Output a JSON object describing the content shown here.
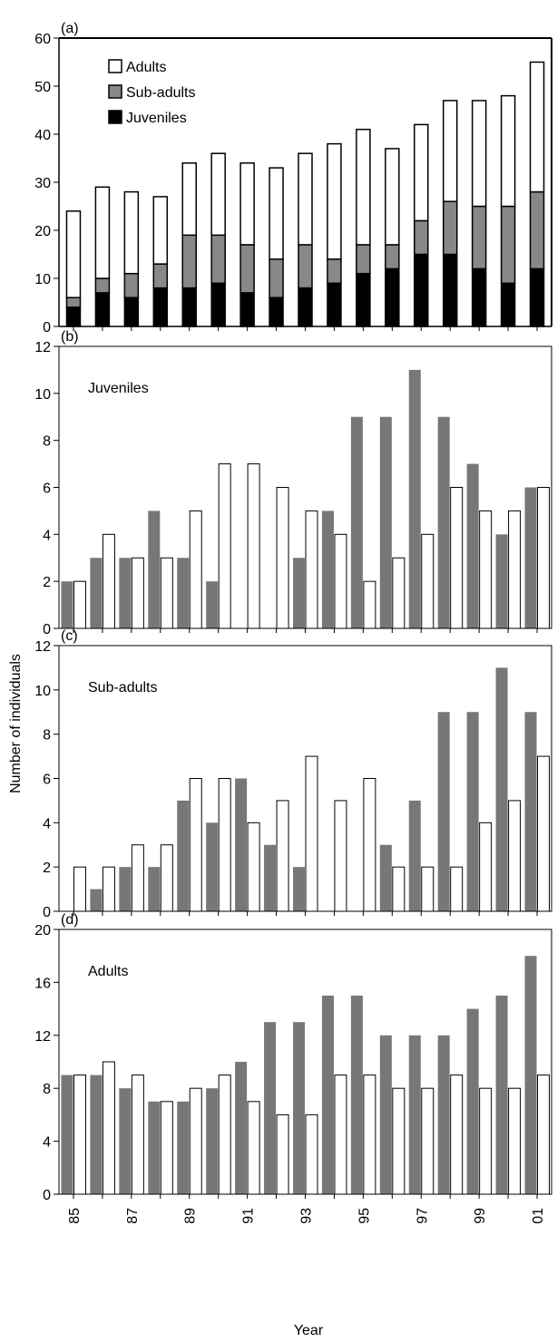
{
  "chart_data": [
    {
      "type": "bar",
      "panel_label": "(a)",
      "stacked": true,
      "categories": [
        "85",
        "86",
        "87",
        "88",
        "89",
        "90",
        "91",
        "92",
        "93",
        "94",
        "95",
        "96",
        "97",
        "98",
        "99",
        "00",
        "01"
      ],
      "series": [
        {
          "name": "Juveniles",
          "color": "#000000",
          "values": [
            4,
            7,
            6,
            8,
            8,
            9,
            7,
            6,
            8,
            9,
            11,
            12,
            15,
            15,
            12,
            9,
            12
          ]
        },
        {
          "name": "Sub-adults",
          "color": "#888888",
          "values": [
            2,
            3,
            5,
            5,
            11,
            10,
            10,
            8,
            9,
            5,
            6,
            5,
            7,
            11,
            13,
            16,
            16
          ]
        },
        {
          "name": "Adults",
          "color": "#ffffff",
          "values": [
            18,
            19,
            17,
            14,
            15,
            17,
            17,
            19,
            19,
            24,
            24,
            20,
            20,
            21,
            22,
            23,
            27
          ]
        }
      ],
      "ylim": [
        0,
        60
      ],
      "yticks": [
        "0",
        "10",
        "20",
        "30",
        "40",
        "50",
        "60"
      ],
      "legend": [
        "Adults",
        "Sub-adults",
        "Juveniles"
      ],
      "legend_position": "top-left"
    },
    {
      "type": "bar",
      "panel_label": "(b)",
      "inset_label": "Juveniles",
      "categories": [
        "85",
        "86",
        "87",
        "88",
        "89",
        "90",
        "91",
        "92",
        "93",
        "94",
        "95",
        "96",
        "97",
        "98",
        "99",
        "00",
        "01"
      ],
      "series": [
        {
          "color": "#777777",
          "values": [
            2,
            3,
            3,
            5,
            3,
            2,
            0,
            0,
            3,
            5,
            9,
            9,
            11,
            9,
            7,
            4,
            6
          ]
        },
        {
          "color": "#ffffff",
          "values": [
            2,
            4,
            3,
            3,
            5,
            7,
            7,
            6,
            5,
            4,
            2,
            3,
            4,
            6,
            5,
            5,
            6
          ]
        }
      ],
      "ylim": [
        0,
        12
      ],
      "yticks": [
        "0",
        "2",
        "4",
        "6",
        "8",
        "10",
        "12"
      ]
    },
    {
      "type": "bar",
      "panel_label": "(c)",
      "inset_label": "Sub-adults",
      "categories": [
        "85",
        "86",
        "87",
        "88",
        "89",
        "90",
        "91",
        "92",
        "93",
        "94",
        "95",
        "96",
        "97",
        "98",
        "99",
        "00",
        "01"
      ],
      "series": [
        {
          "color": "#777777",
          "values": [
            0,
            1,
            2,
            2,
            5,
            4,
            6,
            3,
            2,
            0,
            0,
            3,
            5,
            9,
            9,
            11,
            9
          ]
        },
        {
          "color": "#ffffff",
          "values": [
            2,
            2,
            3,
            3,
            6,
            6,
            4,
            5,
            7,
            5,
            6,
            2,
            2,
            2,
            4,
            5,
            7
          ]
        }
      ],
      "ylim": [
        0,
        12
      ],
      "yticks": [
        "0",
        "2",
        "4",
        "6",
        "8",
        "10",
        "12"
      ]
    },
    {
      "type": "bar",
      "panel_label": "(d)",
      "inset_label": "Adults",
      "categories": [
        "85",
        "86",
        "87",
        "88",
        "89",
        "90",
        "91",
        "92",
        "93",
        "94",
        "95",
        "96",
        "97",
        "98",
        "99",
        "00",
        "01"
      ],
      "series": [
        {
          "color": "#777777",
          "values": [
            9,
            9,
            8,
            7,
            7,
            8,
            10,
            13,
            13,
            15,
            15,
            12,
            12,
            12,
            14,
            15,
            18
          ]
        },
        {
          "color": "#ffffff",
          "values": [
            9,
            10,
            9,
            7,
            8,
            9,
            7,
            6,
            6,
            9,
            9,
            8,
            8,
            9,
            8,
            8,
            9
          ]
        }
      ],
      "ylim": [
        0,
        20
      ],
      "yticks": [
        "0",
        "4",
        "8",
        "12",
        "16",
        "20"
      ]
    }
  ],
  "xticks": [
    "85",
    "87",
    "89",
    "91",
    "93",
    "95",
    "97",
    "99",
    "01"
  ],
  "xlabel": "Year",
  "ylabel": "Number of individuals"
}
